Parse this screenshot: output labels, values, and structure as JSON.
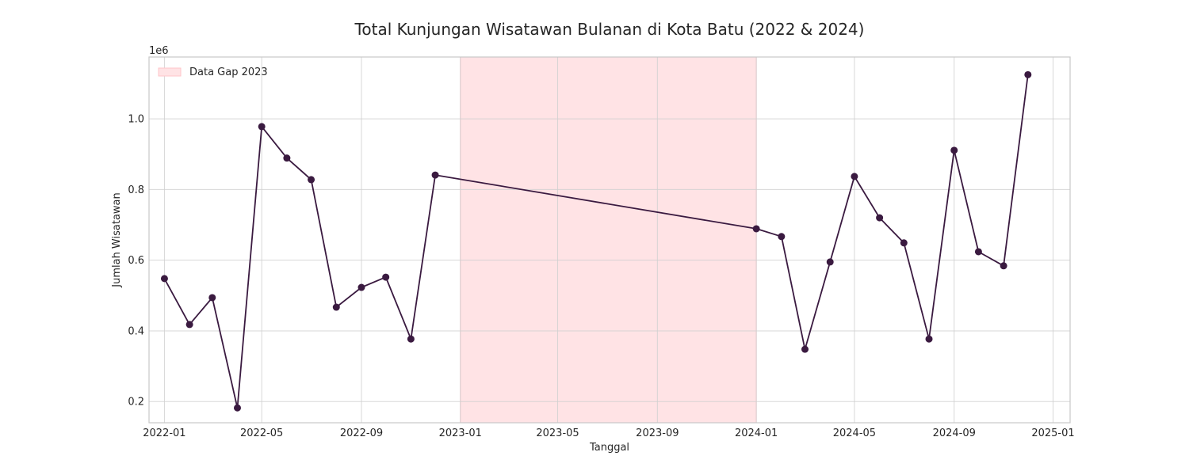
{
  "chart_data": {
    "type": "line",
    "title": "Total Kunjungan Wisatawan Bulanan di Kota Batu (2022 & 2024)",
    "xlabel": "Tanggal",
    "ylabel": "Jumlah Wisatawan",
    "y_scale_note": "1e6",
    "x_ticks": [
      "2022-01",
      "2022-05",
      "2022-09",
      "2023-01",
      "2023-05",
      "2023-09",
      "2024-01",
      "2024-05",
      "2024-09",
      "2025-01"
    ],
    "y_ticks": [
      "0.2",
      "0.4",
      "0.6",
      "0.8",
      "1.0"
    ],
    "ylim": [
      140000,
      1175000
    ],
    "xlim": [
      "2021-12-13",
      "2025-01-22"
    ],
    "grid": true,
    "legend_position": "top-left",
    "colors": {
      "line": "#3a1a40",
      "gap_fill": "#ffe3e5",
      "gap_edge": "#ffc4c9",
      "grid": "#d0d0d0",
      "spine": "#c8c8c8"
    },
    "gap": {
      "label": "Data Gap 2023",
      "start": "2023-01-01",
      "end": "2024-01-01"
    },
    "series": [
      {
        "points": [
          [
            "2022-01-01",
            548000
          ],
          [
            "2022-02-01",
            418000
          ],
          [
            "2022-03-01",
            494000
          ],
          [
            "2022-04-01",
            182000
          ],
          [
            "2022-05-01",
            978000
          ],
          [
            "2022-06-01",
            889000
          ],
          [
            "2022-07-01",
            828000
          ],
          [
            "2022-08-01",
            467000
          ],
          [
            "2022-09-01",
            523000
          ],
          [
            "2022-10-01",
            552000
          ],
          [
            "2022-11-01",
            377000
          ],
          [
            "2022-12-01",
            841000
          ],
          [
            "2024-01-01",
            689000
          ],
          [
            "2024-02-01",
            667000
          ],
          [
            "2024-03-01",
            348000
          ],
          [
            "2024-04-01",
            595000
          ],
          [
            "2024-05-01",
            837000
          ],
          [
            "2024-06-01",
            720000
          ],
          [
            "2024-07-01",
            649000
          ],
          [
            "2024-08-01",
            377000
          ],
          [
            "2024-09-01",
            911000
          ],
          [
            "2024-10-01",
            624000
          ],
          [
            "2024-11-01",
            584000
          ],
          [
            "2024-12-01",
            1125000
          ]
        ]
      }
    ]
  }
}
